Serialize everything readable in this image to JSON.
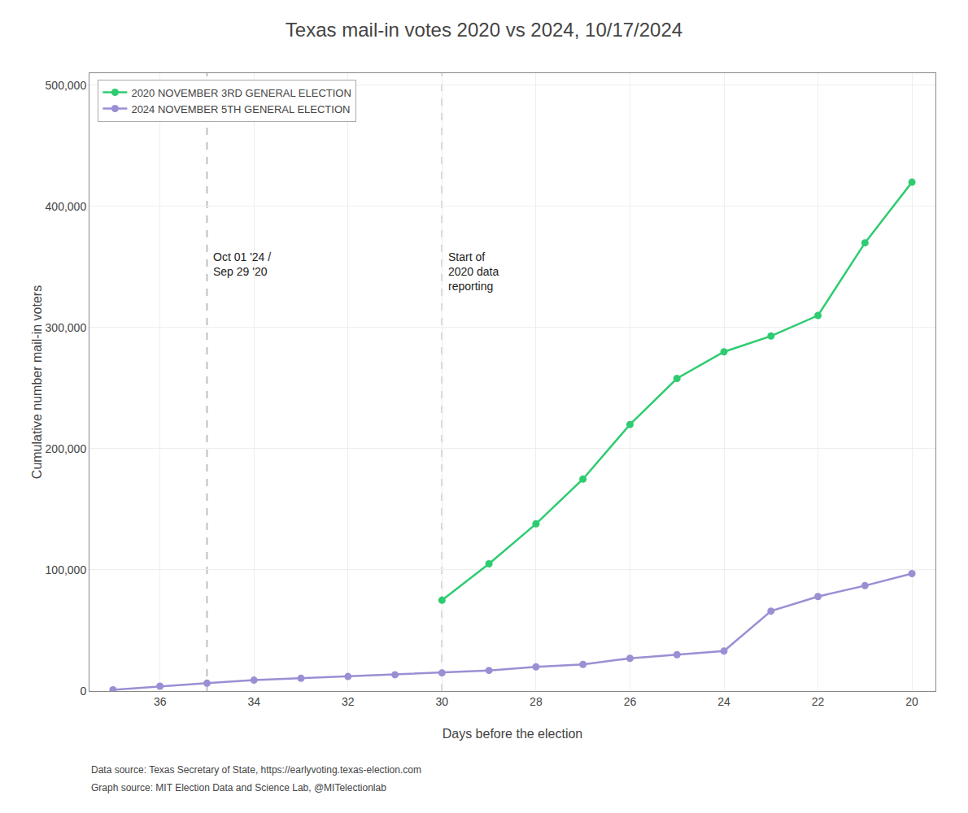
{
  "chart_data": {
    "type": "line",
    "title": "Texas mail-in votes 2020 vs 2024, 10/17/2024",
    "xlabel": "Days before the election",
    "ylabel": "Cumulative number mail-in voters",
    "series": [
      {
        "name": "2020 NOVEMBER 3RD GENERAL ELECTION",
        "color": "#2ecc71",
        "marker": "circle",
        "x": [
          30,
          29,
          28,
          27,
          26,
          25,
          24,
          23,
          22,
          21,
          20
        ],
        "values": [
          75000,
          105000,
          138000,
          175000,
          220000,
          258000,
          280000,
          293000,
          310000,
          370000,
          420000
        ]
      },
      {
        "name": "2024 NOVEMBER 5TH GENERAL ELECTION",
        "color": "#9b8fd4",
        "marker": "circle",
        "x": [
          37,
          36,
          35,
          34,
          33,
          32,
          31,
          30,
          29,
          28,
          27,
          26,
          25,
          24,
          23,
          22,
          21,
          20
        ],
        "values": [
          1000,
          4000,
          6500,
          9000,
          10500,
          12000,
          13500,
          15000,
          17000,
          20000,
          22000,
          27000,
          30000,
          33000,
          66000,
          78000,
          87000,
          97000
        ]
      }
    ],
    "xlim": [
      37.5,
      19.5
    ],
    "xticks": [
      36,
      34,
      32,
      30,
      28,
      26,
      24,
      22,
      20
    ],
    "ylim": [
      0,
      510000
    ],
    "yticks": [
      0,
      {
        "value": 100000,
        "label": "100,000"
      },
      {
        "value": 200000,
        "label": "200,000"
      },
      {
        "value": 300000,
        "label": "300,000"
      },
      {
        "value": 400000,
        "label": "400,000"
      },
      {
        "value": 500000,
        "label": "500,000"
      }
    ],
    "grid": true,
    "legend": "upper left",
    "annotations": [
      {
        "x": 35,
        "y": 365000,
        "text": "Oct 01 '24 /\nSep 29 '20"
      },
      {
        "x": 30,
        "y": 365000,
        "text": "Start of\n2020 data\nreporting"
      }
    ],
    "footnotes": [
      "Data source: Texas Secretary of State, https://earlyvoting.texas-election.com",
      "Graph source: MIT Election Data and Science Lab, @MITelectionlab"
    ]
  }
}
